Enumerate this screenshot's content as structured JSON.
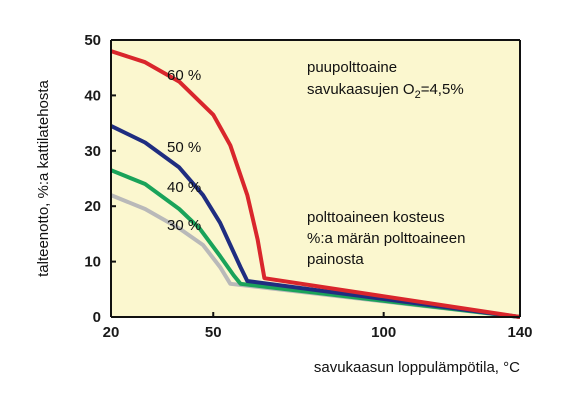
{
  "chart_data": {
    "type": "line",
    "title": "",
    "xlabel": "savukaasun loppulämpötila, °C",
    "xlabel_main": "savukaasun loppulämpötila, ",
    "xlabel_unit": "°C",
    "ylabel": "talteenotto, %:a kattilatehosta",
    "xlim": [
      20,
      140
    ],
    "ylim": [
      0,
      50
    ],
    "x_ticks": [
      20,
      50,
      100,
      140
    ],
    "y_ticks": [
      0,
      10,
      20,
      30,
      40,
      50
    ],
    "plot_background": "#fbf7cf",
    "grid": false,
    "series": [
      {
        "name": "60 %",
        "color": "#d9262c",
        "x": [
          20,
          30,
          40,
          50,
          55,
          60,
          63,
          65,
          140
        ],
        "y": [
          48,
          46,
          42.5,
          36.5,
          31,
          22,
          14,
          7,
          0
        ]
      },
      {
        "name": "50 %",
        "color": "#1f2d80",
        "x": [
          20,
          30,
          40,
          47,
          52,
          55,
          58,
          60,
          140
        ],
        "y": [
          34.5,
          31.5,
          27,
          22,
          17,
          13,
          9,
          6.5,
          0
        ]
      },
      {
        "name": "40 %",
        "color": "#1aa35a",
        "x": [
          20,
          30,
          40,
          46,
          52,
          56,
          58,
          140
        ],
        "y": [
          26.5,
          24,
          19.5,
          16,
          11,
          7.5,
          6,
          0
        ]
      },
      {
        "name": "30 %",
        "color": "#b9b9b9",
        "x": [
          20,
          30,
          40,
          47,
          52,
          55,
          140
        ],
        "y": [
          22,
          19.5,
          16,
          13,
          9,
          6,
          0
        ]
      }
    ],
    "annotations": {
      "fuel_line1": "puupolttoaine",
      "fuel_line2_prefix": "savukaasujen O",
      "fuel_line2_sub": "2",
      "fuel_line2_suffix": "=4,5%",
      "moisture_line1": "polttoaineen kosteus",
      "moisture_line2": "%:a märän polttoaineen",
      "moisture_line3": "painosta"
    }
  }
}
